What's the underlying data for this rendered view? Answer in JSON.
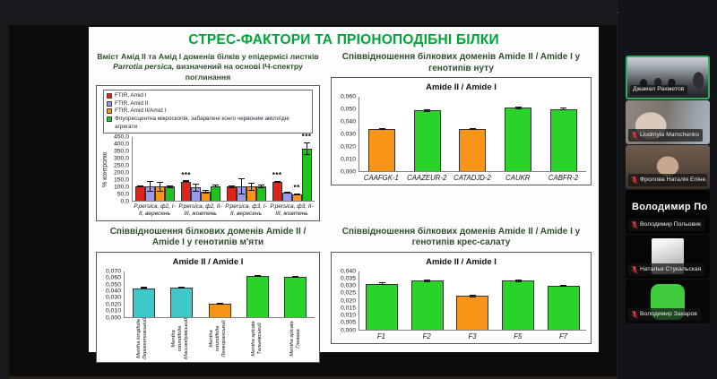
{
  "window": {
    "minimize_glyph": "—",
    "close_glyph": "✕"
  },
  "slide": {
    "title": "СТРЕС-ФАКТОРИ ТА ПРІОНОПОДІБНІ БІЛКИ"
  },
  "chart_data": [
    {
      "id": "parrotia",
      "type": "bar",
      "title": "Вміст Амід II та Амід I доменів білків у епідермісі листків Parrotia persica, визначений на основі ІЧ-спектру поглинання",
      "title_line1": "Вміст Амід II та Амід I доменів білків у епідермісі листків",
      "species_italic": "Parrotia persica,",
      "title_line2_rest": " визначений на основі ІЧ-спектру поглинання",
      "ylabel": "% контролю",
      "ylim": [
        0,
        450
      ],
      "ytick_step": 50,
      "decimals": 1,
      "grid": false,
      "legend_position": "top-box",
      "categories": [
        "P.persica, ф2, І-ІІ, вересень",
        "P.persica, ф2, ІІ-ІІІ, жовтень",
        "P.persica, ф3, І-ІІ, вересень",
        "P.persica, ф3, ІІ-ІІІ, жовтень"
      ],
      "series": [
        {
          "name": "FTIR, Amid I",
          "color": "#e02419",
          "values": [
            100,
            137,
            100,
            132
          ],
          "errors": [
            7,
            5,
            10,
            6
          ],
          "sig": [
            "",
            "***",
            "",
            "***"
          ]
        },
        {
          "name": "FTIR, Amid II",
          "color": "#9a9ae8",
          "values": [
            100,
            93,
            100,
            57
          ],
          "errors": [
            38,
            30,
            57,
            5
          ],
          "sig": [
            "",
            "",
            "",
            ""
          ]
        },
        {
          "name": "FTIR, Amid II/Amid I",
          "color": "#f89418",
          "values": [
            100,
            67,
            100,
            45
          ],
          "errors": [
            33,
            13,
            30,
            5
          ],
          "sig": [
            "",
            "",
            "",
            "**"
          ]
        },
        {
          "name": "Флуоресцентна мікроскопія, забарвлені конго червоним амілоїдні агрегати",
          "color": "#1ec41e",
          "values": [
            102,
            104,
            102,
            370
          ],
          "errors": [
            10,
            10,
            15,
            45
          ],
          "sig": [
            "",
            "",
            "",
            "***"
          ]
        }
      ]
    },
    {
      "id": "nut",
      "type": "bar",
      "title": "Співвідношення білкових доменів Amide II / Amide I у генотипів нуту",
      "inner_title": "Amide II / Amide I",
      "ylim": [
        0,
        0.06
      ],
      "ytick_step": 0.01,
      "decimals": 3,
      "grid": false,
      "categories": [
        "CAAFGK-1",
        "CAAZEUR-2",
        "CATADJD-2",
        "CAUKR",
        "CABFR-2"
      ],
      "values": [
        0.034,
        0.049,
        0.034,
        0.051,
        0.05
      ],
      "errors": [
        0.001,
        0.001,
        0.001,
        0.001,
        0.001
      ],
      "colors": [
        "#f89418",
        "#2ad32a",
        "#f89418",
        "#2ad32a",
        "#2ad32a"
      ]
    },
    {
      "id": "mint",
      "type": "bar",
      "title": "Співвідношення білкових доменів Amide II / Amide I у генотипів м'яти",
      "inner_title": "Amide II / Amide I",
      "ylim": [
        0,
        0.07
      ],
      "ytick_step": 0.01,
      "decimals": 3,
      "grid": false,
      "categories": [
        "Mentha longifolia Лермонтовський",
        "Mentha rotundifolia Массандрівський",
        "Mentha rotundifolia Ленкоранський",
        "Mentha spicata Тальнівський",
        "Mentha spicata Глеваха"
      ],
      "values": [
        0.044,
        0.045,
        0.02,
        0.063,
        0.061
      ],
      "errors": [
        0.001,
        0.001,
        0.0015,
        0.001,
        0.001
      ],
      "colors": [
        "#3fc8c8",
        "#3fc8c8",
        "#f89418",
        "#2ad32a",
        "#2ad32a"
      ]
    },
    {
      "id": "cress",
      "type": "bar",
      "title": "Співвідношення білкових доменів Amide II / Amide I у генотипів крес-салату",
      "inner_title": "Amide II / Amide I",
      "ylim": [
        0,
        0.04
      ],
      "ytick_step": 0.005,
      "decimals": 3,
      "grid": false,
      "categories": [
        "F1",
        "F2",
        "F3",
        "F5",
        "F7"
      ],
      "values": [
        0.0315,
        0.0335,
        0.023,
        0.0335,
        0.03
      ],
      "errors": [
        0.0008,
        0.0008,
        0.0008,
        0.0008,
        0.0008
      ],
      "colors": [
        "#2ad32a",
        "#2ad32a",
        "#f89418",
        "#2ad32a",
        "#2ad32a"
      ]
    }
  ],
  "participants": [
    {
      "name": "Джамал Рахметов",
      "muted": false,
      "active": true,
      "video": "room"
    },
    {
      "name": "Liudmyla Mamchenko",
      "muted": true,
      "active": false,
      "video": "closeup"
    },
    {
      "name": "Фролова Наталія Епіне...",
      "muted": true,
      "active": false,
      "video": "dim"
    },
    {
      "name": "Володимир Польовик",
      "big_name": "Володимир По...",
      "muted": true,
      "active": false,
      "video": "none"
    },
    {
      "name": "Наталья Стукальская",
      "muted": true,
      "active": false,
      "video": "photo"
    },
    {
      "name": "Володимир Захаров",
      "muted": true,
      "active": false,
      "video": "green"
    }
  ]
}
